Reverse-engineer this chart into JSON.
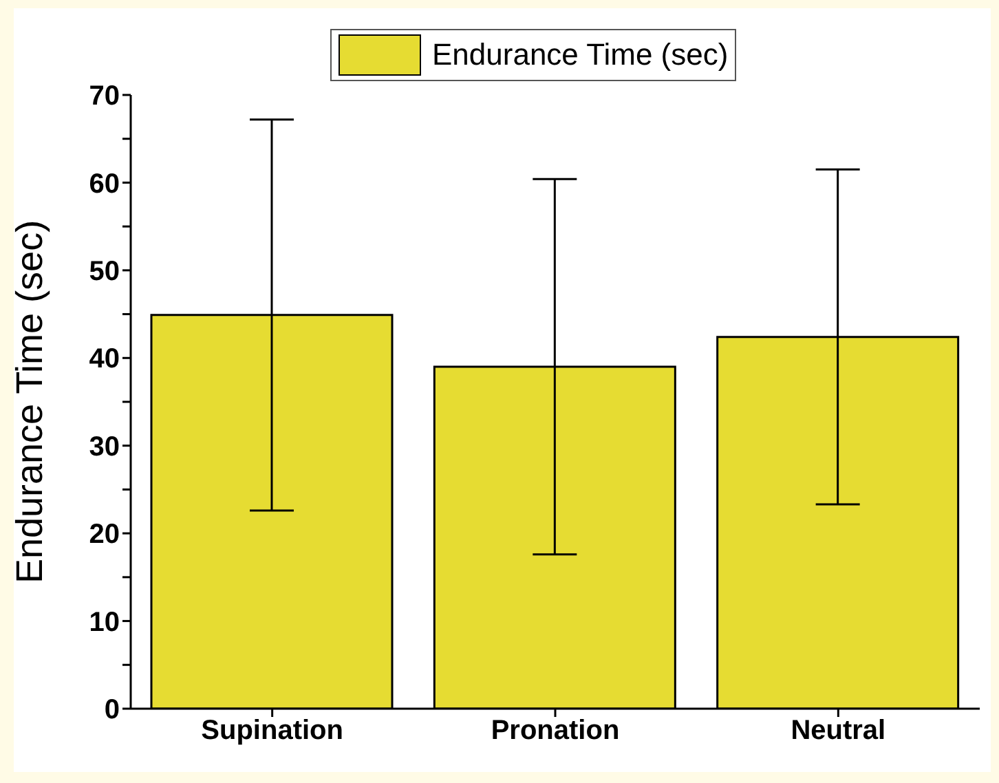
{
  "chart_data": {
    "type": "bar",
    "ylabel": "Endurance Time (sec)",
    "categories": [
      "Supination",
      "Pronation",
      "Neutral"
    ],
    "series": [
      {
        "name": "Endurance Time (sec)",
        "color": "#e6dc32",
        "values": [
          44.9,
          39,
          42.4
        ],
        "errors": [
          22.3,
          21.4,
          19.1
        ]
      }
    ],
    "ylim": [
      0,
      70
    ],
    "yticks": [
      0,
      {
        "value": 5,
        "label": null
      },
      10,
      {
        "value": 15,
        "label": null
      },
      20,
      {
        "value": 25,
        "label": null
      },
      30,
      {
        "value": 35,
        "label": null
      },
      40,
      {
        "value": 45,
        "label": null
      },
      50,
      {
        "value": 55,
        "label": null
      },
      60,
      {
        "value": 65,
        "label": null
      },
      70
    ],
    "grid": false,
    "legend": "top"
  }
}
